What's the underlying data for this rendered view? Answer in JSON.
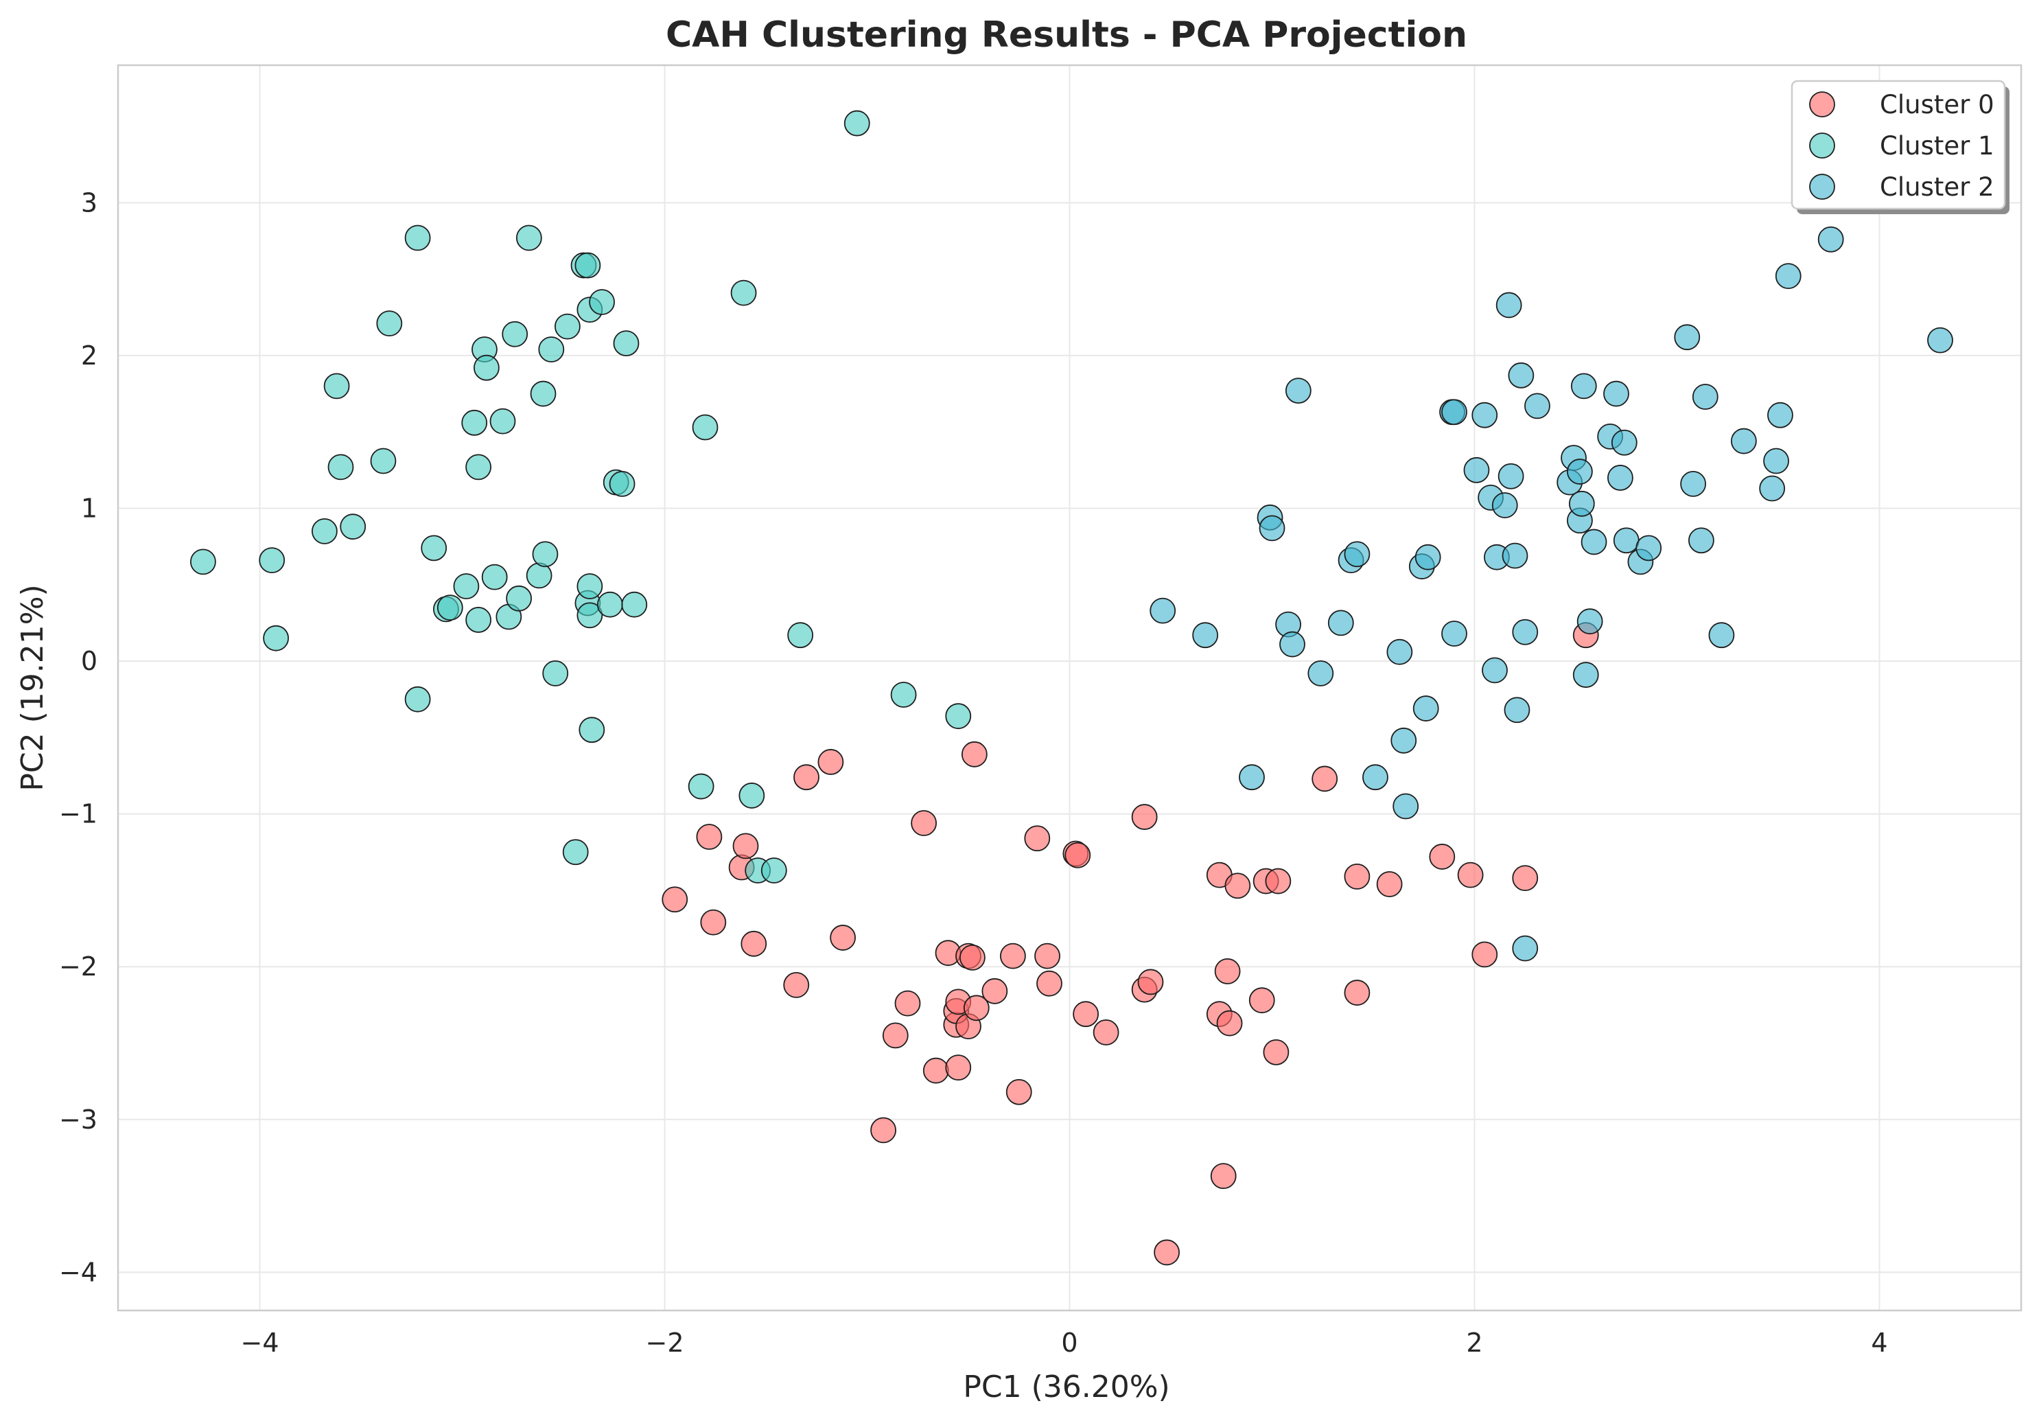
{
  "chart_data": {
    "type": "scatter",
    "title": "CAH Clustering Results - PCA Projection",
    "xlabel": "PC1 (36.20%)",
    "ylabel": "PC2 (19.21%)",
    "xlim": [
      -4.7,
      4.7
    ],
    "ylim": [
      -4.25,
      3.9
    ],
    "xticks": [
      -4,
      -2,
      0,
      2,
      4
    ],
    "yticks": [
      -4,
      -3,
      -2,
      -1,
      0,
      1,
      2,
      3
    ],
    "xtick_labels": [
      "−4",
      "−2",
      "0",
      "2",
      "4"
    ],
    "ytick_labels": [
      "−4",
      "−3",
      "−2",
      "−1",
      "0",
      "1",
      "2",
      "3"
    ],
    "grid": true,
    "legend_position": "top-right",
    "series": [
      {
        "name": "Cluster 0",
        "color": "#ff6b6b",
        "points": [
          [
            -1.95,
            -1.56
          ],
          [
            -1.78,
            -1.15
          ],
          [
            -1.76,
            -1.71
          ],
          [
            -1.62,
            -1.35
          ],
          [
            -1.6,
            -1.21
          ],
          [
            -1.56,
            -1.85
          ],
          [
            -1.35,
            -2.12
          ],
          [
            -1.3,
            -0.76
          ],
          [
            -1.18,
            -0.66
          ],
          [
            -1.12,
            -1.81
          ],
          [
            -0.92,
            -3.07
          ],
          [
            -0.86,
            -2.45
          ],
          [
            -0.8,
            -2.24
          ],
          [
            -0.72,
            -1.06
          ],
          [
            -0.66,
            -2.68
          ],
          [
            -0.6,
            -1.91
          ],
          [
            -0.56,
            -2.38
          ],
          [
            -0.56,
            -2.29
          ],
          [
            -0.55,
            -2.23
          ],
          [
            -0.55,
            -2.66
          ],
          [
            -0.5,
            -1.93
          ],
          [
            -0.5,
            -2.39
          ],
          [
            -0.48,
            -1.94
          ],
          [
            -0.47,
            -0.61
          ],
          [
            -0.46,
            -2.27
          ],
          [
            -0.37,
            -2.16
          ],
          [
            -0.28,
            -1.93
          ],
          [
            -0.25,
            -2.82
          ],
          [
            -0.16,
            -1.16
          ],
          [
            -0.11,
            -1.93
          ],
          [
            -0.1,
            -2.11
          ],
          [
            0.03,
            -1.26
          ],
          [
            0.04,
            -1.27
          ],
          [
            0.08,
            -2.31
          ],
          [
            0.18,
            -2.43
          ],
          [
            0.37,
            -1.02
          ],
          [
            0.37,
            -2.15
          ],
          [
            0.4,
            -2.1
          ],
          [
            0.48,
            -3.87
          ],
          [
            0.74,
            -2.31
          ],
          [
            0.74,
            -1.4
          ],
          [
            0.76,
            -3.37
          ],
          [
            0.78,
            -2.03
          ],
          [
            0.79,
            -2.37
          ],
          [
            0.83,
            -1.47
          ],
          [
            0.95,
            -2.22
          ],
          [
            0.97,
            -1.44
          ],
          [
            1.02,
            -2.56
          ],
          [
            1.03,
            -1.44
          ],
          [
            1.26,
            -0.77
          ],
          [
            1.42,
            -1.41
          ],
          [
            1.42,
            -2.17
          ],
          [
            1.58,
            -1.46
          ],
          [
            1.84,
            -1.28
          ],
          [
            1.98,
            -1.4
          ],
          [
            2.05,
            -1.92
          ],
          [
            2.25,
            -1.42
          ],
          [
            2.55,
            0.17
          ]
        ]
      },
      {
        "name": "Cluster 1",
        "color": "#4ecdc4",
        "points": [
          [
            -4.28,
            0.65
          ],
          [
            -3.94,
            0.66
          ],
          [
            -3.92,
            0.15
          ],
          [
            -3.68,
            0.85
          ],
          [
            -3.62,
            1.8
          ],
          [
            -3.6,
            1.27
          ],
          [
            -3.54,
            0.88
          ],
          [
            -3.39,
            1.31
          ],
          [
            -3.36,
            2.21
          ],
          [
            -3.22,
            2.77
          ],
          [
            -3.22,
            -0.25
          ],
          [
            -3.14,
            0.74
          ],
          [
            -3.08,
            0.34
          ],
          [
            -3.06,
            0.35
          ],
          [
            -2.98,
            0.49
          ],
          [
            -2.94,
            1.56
          ],
          [
            -2.92,
            0.27
          ],
          [
            -2.92,
            1.27
          ],
          [
            -2.89,
            2.04
          ],
          [
            -2.88,
            1.92
          ],
          [
            -2.84,
            0.55
          ],
          [
            -2.8,
            1.57
          ],
          [
            -2.77,
            0.29
          ],
          [
            -2.74,
            2.14
          ],
          [
            -2.72,
            0.41
          ],
          [
            -2.67,
            2.77
          ],
          [
            -2.62,
            0.56
          ],
          [
            -2.6,
            1.75
          ],
          [
            -2.59,
            0.7
          ],
          [
            -2.56,
            2.04
          ],
          [
            -2.54,
            -0.08
          ],
          [
            -2.48,
            2.19
          ],
          [
            -2.44,
            -1.25
          ],
          [
            -2.4,
            2.59
          ],
          [
            -2.38,
            2.59
          ],
          [
            -2.38,
            0.38
          ],
          [
            -2.37,
            2.3
          ],
          [
            -2.37,
            0.49
          ],
          [
            -2.37,
            0.3
          ],
          [
            -2.36,
            -0.45
          ],
          [
            -2.31,
            2.35
          ],
          [
            -2.27,
            0.37
          ],
          [
            -2.24,
            1.17
          ],
          [
            -2.21,
            1.16
          ],
          [
            -2.19,
            2.08
          ],
          [
            -2.15,
            0.37
          ],
          [
            -1.82,
            -0.82
          ],
          [
            -1.8,
            1.53
          ],
          [
            -1.61,
            2.41
          ],
          [
            -1.57,
            -0.88
          ],
          [
            -1.54,
            -1.37
          ],
          [
            -1.46,
            -1.37
          ],
          [
            -1.33,
            0.17
          ],
          [
            -1.05,
            3.52
          ],
          [
            -0.82,
            -0.22
          ],
          [
            -0.55,
            -0.36
          ]
        ]
      },
      {
        "name": "Cluster 2",
        "color": "#45b7d1",
        "points": [
          [
            0.46,
            0.33
          ],
          [
            0.67,
            0.17
          ],
          [
            0.9,
            -0.76
          ],
          [
            0.99,
            0.94
          ],
          [
            1.0,
            0.87
          ],
          [
            1.08,
            0.24
          ],
          [
            1.1,
            0.11
          ],
          [
            1.13,
            1.77
          ],
          [
            1.24,
            -0.08
          ],
          [
            1.34,
            0.25
          ],
          [
            1.39,
            0.66
          ],
          [
            1.42,
            0.7
          ],
          [
            1.51,
            -0.76
          ],
          [
            1.63,
            0.06
          ],
          [
            1.65,
            -0.52
          ],
          [
            1.66,
            -0.95
          ],
          [
            1.74,
            0.62
          ],
          [
            1.76,
            -0.31
          ],
          [
            1.77,
            0.68
          ],
          [
            1.89,
            1.63
          ],
          [
            1.9,
            1.63
          ],
          [
            1.9,
            0.18
          ],
          [
            2.01,
            1.25
          ],
          [
            2.05,
            1.61
          ],
          [
            2.08,
            1.07
          ],
          [
            2.1,
            -0.06
          ],
          [
            2.11,
            0.68
          ],
          [
            2.15,
            1.02
          ],
          [
            2.17,
            2.33
          ],
          [
            2.18,
            1.21
          ],
          [
            2.2,
            0.69
          ],
          [
            2.21,
            -0.32
          ],
          [
            2.23,
            1.87
          ],
          [
            2.25,
            0.19
          ],
          [
            2.25,
            -1.88
          ],
          [
            2.31,
            1.67
          ],
          [
            2.47,
            1.17
          ],
          [
            2.49,
            1.33
          ],
          [
            2.52,
            1.24
          ],
          [
            2.52,
            0.92
          ],
          [
            2.53,
            1.03
          ],
          [
            2.54,
            1.8
          ],
          [
            2.55,
            -0.09
          ],
          [
            2.57,
            0.26
          ],
          [
            2.59,
            0.78
          ],
          [
            2.67,
            1.47
          ],
          [
            2.7,
            1.75
          ],
          [
            2.72,
            1.2
          ],
          [
            2.74,
            1.43
          ],
          [
            2.75,
            0.79
          ],
          [
            2.82,
            0.65
          ],
          [
            2.86,
            0.74
          ],
          [
            3.05,
            2.12
          ],
          [
            3.08,
            1.16
          ],
          [
            3.12,
            0.79
          ],
          [
            3.14,
            1.73
          ],
          [
            3.22,
            0.17
          ],
          [
            3.33,
            1.44
          ],
          [
            3.47,
            1.13
          ],
          [
            3.49,
            1.31
          ],
          [
            3.51,
            1.61
          ],
          [
            3.55,
            2.52
          ],
          [
            3.76,
            2.76
          ],
          [
            4.3,
            2.1
          ]
        ]
      }
    ]
  }
}
